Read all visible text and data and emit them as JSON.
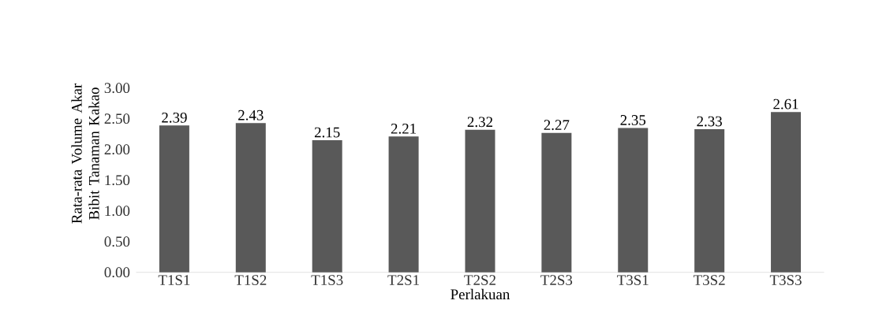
{
  "chart_data": {
    "type": "bar",
    "xlabel": "Perlakuan",
    "ylabel": "Rata-rata Volume Akar Bibit Tanaman Kakao",
    "categories": [
      "T1S1",
      "T1S2",
      "T1S3",
      "T2S1",
      "T2S2",
      "T2S3",
      "T3S1",
      "T3S2",
      "T3S3"
    ],
    "values": [
      2.39,
      2.43,
      2.15,
      2.21,
      2.32,
      2.27,
      2.35,
      2.33,
      2.61
    ],
    "color": "#595959",
    "data_labels": true,
    "ylim": [
      0,
      3
    ],
    "yticks": [
      {
        "value": 0,
        "label": "0.00"
      },
      {
        "value": 0.5,
        "label": "0.50"
      },
      {
        "value": 1,
        "label": "1.00"
      },
      {
        "value": 1.5,
        "label": "1.50"
      },
      {
        "value": 2,
        "label": "2.00"
      },
      {
        "value": 2.5,
        "label": "2.50"
      },
      {
        "value": 3,
        "label": "3.00"
      }
    ]
  }
}
